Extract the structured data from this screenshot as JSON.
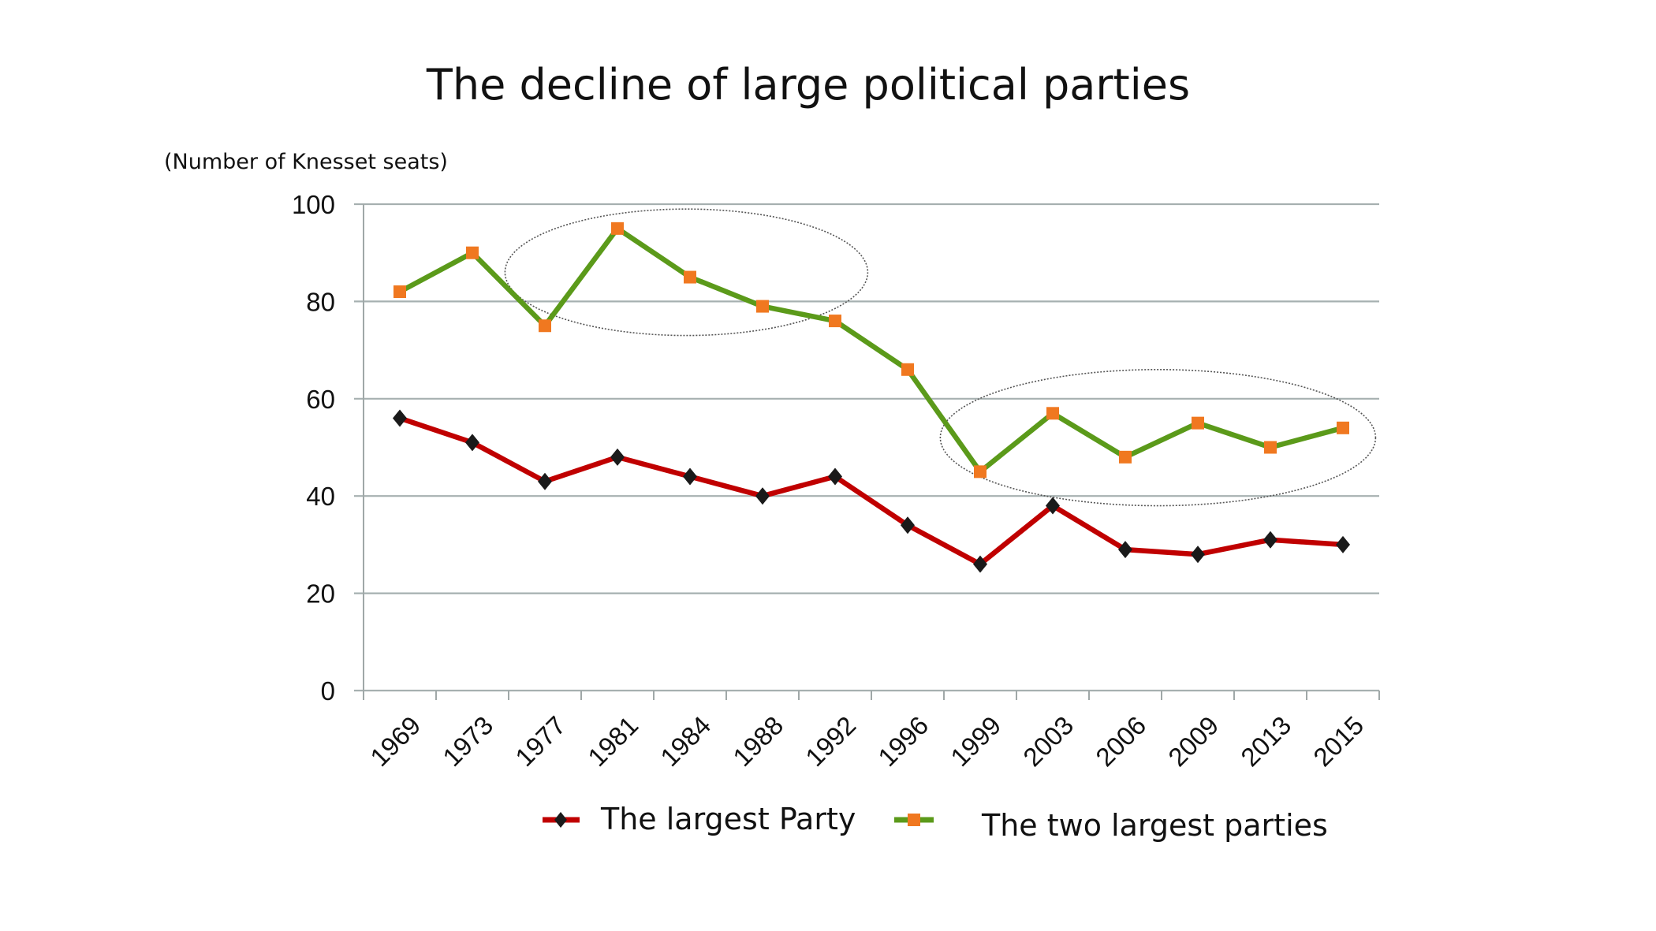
{
  "chart_data": {
    "type": "line",
    "title": "The decline of large political parties",
    "ylabel": "(Number of Knesset seats)",
    "xlabel": "",
    "ylim": [
      0,
      100
    ],
    "yticks": [
      0,
      20,
      40,
      60,
      80,
      100
    ],
    "ytick_labels": [
      "0",
      "20",
      "40",
      "60",
      "80",
      "100"
    ],
    "grid": true,
    "categories": [
      "1969",
      "1973",
      "1977",
      "1981",
      "1984",
      "1988",
      "1992",
      "1996",
      "1999",
      "2003",
      "2006",
      "2009",
      "2013",
      "2015"
    ],
    "series": [
      {
        "name": "The largest Party",
        "values": [
          56,
          51,
          43,
          48,
          44,
          40,
          44,
          34,
          26,
          38,
          29,
          28,
          31,
          30
        ],
        "line_color": "#c00000",
        "marker": "diamond",
        "marker_color": "#1a1a1a"
      },
      {
        "name": "The two largest parties",
        "values": [
          82,
          90,
          75,
          95,
          85,
          79,
          76,
          66,
          45,
          57,
          48,
          55,
          50,
          54
        ],
        "line_color": "#5b9a1a",
        "marker": "square",
        "marker_color": "#f07820"
      }
    ],
    "annotations": [
      {
        "type": "dotted-ellipse",
        "from_category": "1977",
        "to_category": "1992",
        "y_range": [
          73,
          99
        ]
      },
      {
        "type": "dotted-ellipse",
        "from_category": "1999",
        "to_category": "2015",
        "y_range": [
          38,
          66
        ]
      }
    ],
    "legend_position": "bottom",
    "colors": {
      "grid": "#a6b0b0",
      "axis": "#a0a8a8"
    }
  }
}
